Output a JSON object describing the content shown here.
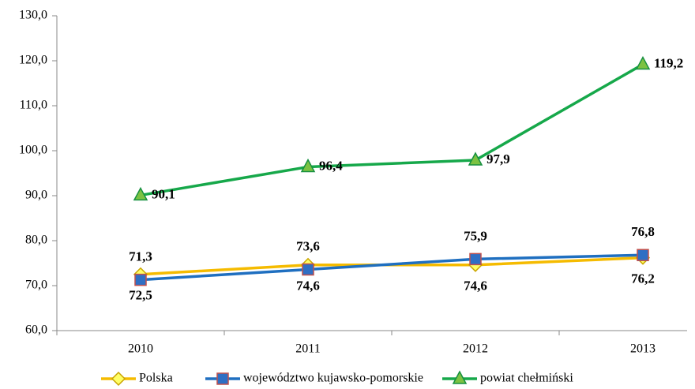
{
  "chart_data": {
    "type": "line",
    "categories": [
      "2010",
      "2011",
      "2012",
      "2013"
    ],
    "series": [
      {
        "name": "Polska",
        "color": "#f5bb00",
        "marker": "diamond",
        "values": [
          72.5,
          74.6,
          74.6,
          76.2
        ],
        "value_labels": [
          "72,5",
          "74,6",
          "74,6",
          "76,2"
        ]
      },
      {
        "name": "województwo kujawsko-pomorskie",
        "color": "#1f6fc0",
        "marker": "square",
        "values": [
          71.3,
          73.6,
          75.9,
          76.8
        ],
        "value_labels": [
          "71,3",
          "73,6",
          "75,9",
          "76,8"
        ]
      },
      {
        "name": "powiat chełmiński",
        "color": "#16a84a",
        "marker": "triangle",
        "values": [
          90.1,
          96.4,
          97.9,
          119.2
        ],
        "value_labels": [
          "90,1",
          "96,4",
          "97,9",
          "119,2"
        ]
      }
    ],
    "ylim": [
      60,
      130
    ],
    "yticks": [
      {
        "value": 60,
        "label": "60,0"
      },
      {
        "value": 70,
        "label": "70,0"
      },
      {
        "value": 80,
        "label": "80,0"
      },
      {
        "value": 90,
        "label": "90,0"
      },
      {
        "value": 100,
        "label": "100,0"
      },
      {
        "value": 110,
        "label": "110,0"
      },
      {
        "value": 120,
        "label": "120,0"
      },
      {
        "value": 130,
        "label": "130,0"
      }
    ],
    "grid": false,
    "legend": "bottom"
  }
}
